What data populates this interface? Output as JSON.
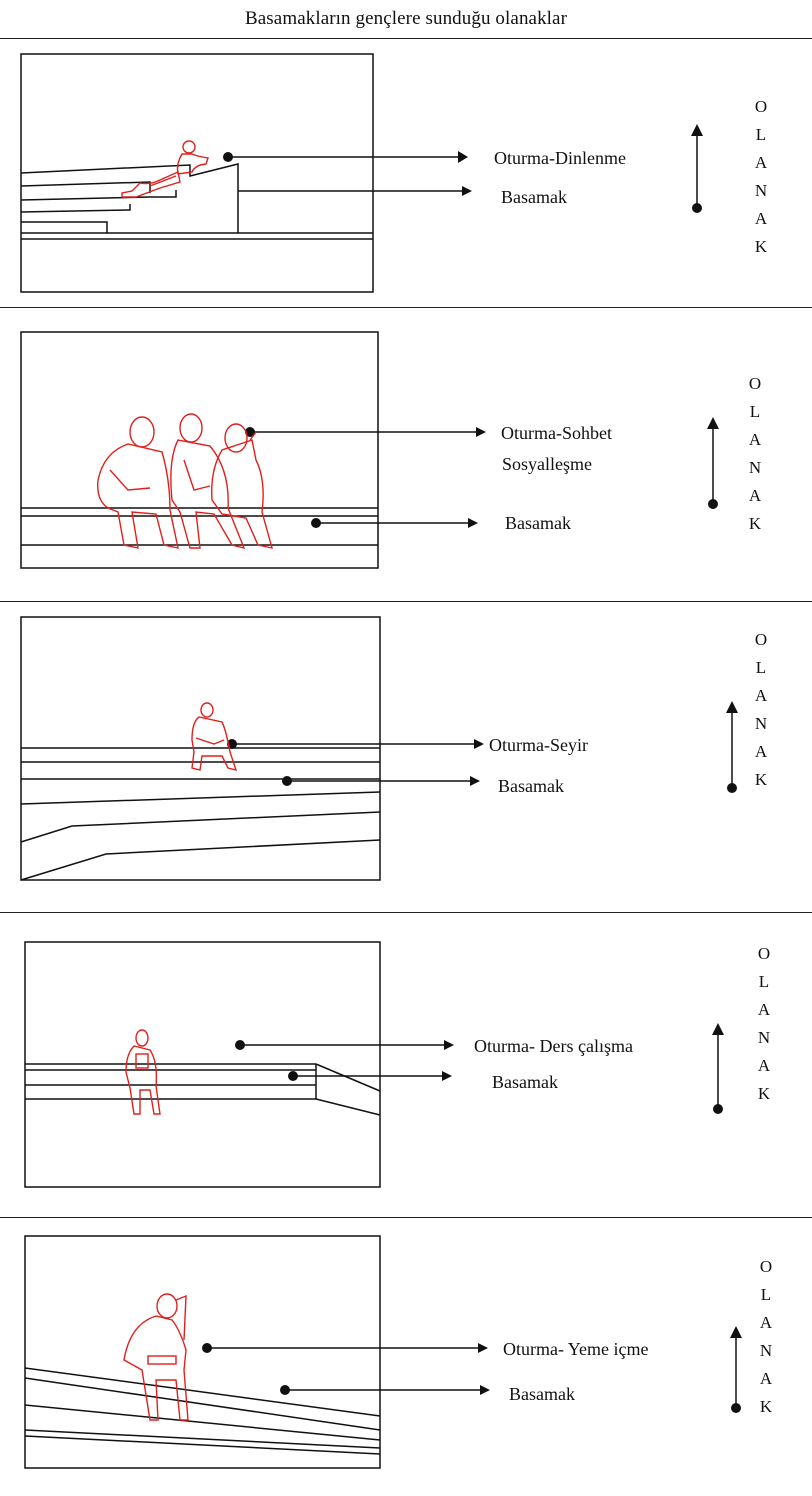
{
  "title": "Basamakların gençlere sunduğu olanaklar",
  "vertical_word": [
    "O",
    "L",
    "A",
    "N",
    "A",
    "K"
  ],
  "colors": {
    "figure": "#e0201c",
    "line": "#111111"
  },
  "panels": [
    {
      "activity": "Oturma-Dinlenme",
      "activity2": "",
      "element": "Basamak"
    },
    {
      "activity": "Oturma-Sohbet",
      "activity2": "Sosyalleşme",
      "element": "Basamak"
    },
    {
      "activity": "Oturma-Seyir",
      "activity2": "",
      "element": "Basamak"
    },
    {
      "activity": "Oturma- Ders çalışma",
      "activity2": "",
      "element": "Basamak"
    },
    {
      "activity": "Oturma- Yeme içme",
      "activity2": "",
      "element": "Basamak"
    }
  ]
}
